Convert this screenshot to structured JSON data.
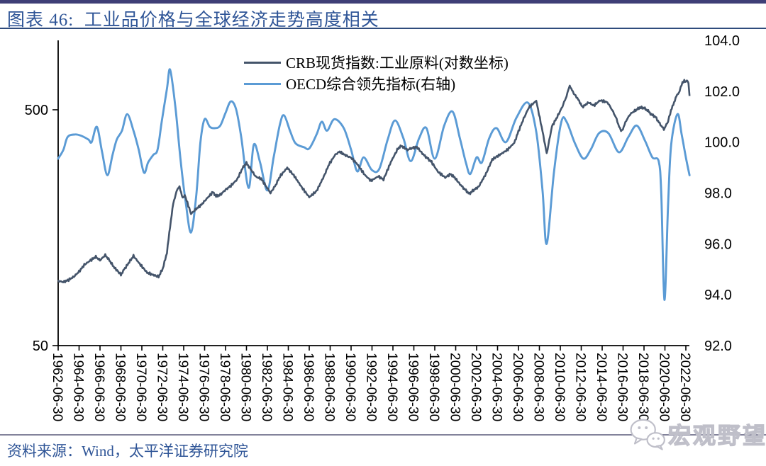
{
  "header": {
    "title": "图表 46:  工业品价格与全球经济走势高度相关",
    "title_color": "#2F5597",
    "top_bar_color": "#3F3F77",
    "underline_color": "#2F4B7C"
  },
  "legend": {
    "items": [
      {
        "label": "CRB现货指数:工业原料(对数坐标)",
        "color": "#44546A"
      },
      {
        "label": "OECD综合领先指标(右轴)",
        "color": "#5B9BD5"
      }
    ]
  },
  "footer": {
    "source_text": "资料来源：Wind，太平洋证券研究院",
    "text_color": "#2F5597",
    "divider_color": "#83839B"
  },
  "watermark": {
    "text": "宏观野望",
    "icon": "wechat-chat-icon",
    "color": "#BFBFC9"
  },
  "chart_data": {
    "type": "line",
    "title": "工业品价格与全球经济走势高度相关",
    "grid": false,
    "legend_position": "top-center",
    "x_axis": {
      "unit": "decimal_year",
      "start_year": 1962.5,
      "end_year": 2022.5,
      "tick_step_years": 2,
      "tick_labels": [
        "1962-06-30",
        "1964-06-30",
        "1966-06-30",
        "1968-06-30",
        "1970-06-30",
        "1972-06-30",
        "1974-06-30",
        "1976-06-30",
        "1978-06-30",
        "1980-06-30",
        "1982-06-30",
        "1984-06-30",
        "1986-06-30",
        "1988-06-30",
        "1990-06-30",
        "1992-06-30",
        "1994-06-30",
        "1996-06-30",
        "1998-06-30",
        "2000-06-30",
        "2002-06-30",
        "2004-06-30",
        "2006-06-30",
        "2008-06-30",
        "2010-06-30",
        "2012-06-30",
        "2014-06-30",
        "2016-06-30",
        "2018-06-30",
        "2020-06-30",
        "2022-06-30"
      ]
    },
    "left_axis": {
      "scale": "log10",
      "tick_values": [
        500,
        50
      ],
      "tick_labels": [
        "500",
        "50"
      ],
      "applies_to": "CRB现货指数:工业原料"
    },
    "right_axis": {
      "scale": "linear",
      "range": [
        92.0,
        104.0
      ],
      "tick_values": [
        104,
        102,
        100,
        98,
        96,
        94,
        92
      ],
      "tick_labels": [
        "104.0",
        "102.0",
        "100.0",
        "98.0",
        "96.0",
        "94.0",
        "92.0"
      ],
      "applies_to": "OECD综合领先指标"
    },
    "series": [
      {
        "name": "CRB现货指数:工业原料(对数坐标)",
        "axis": "left",
        "color": "#44546A",
        "points": [
          [
            1962.5,
            94
          ],
          [
            1963.0,
            93
          ],
          [
            1963.5,
            95
          ],
          [
            1964.0,
            98
          ],
          [
            1964.5,
            103
          ],
          [
            1965.0,
            110
          ],
          [
            1965.6,
            115
          ],
          [
            1966.1,
            119
          ],
          [
            1966.5,
            115
          ],
          [
            1967.0,
            121
          ],
          [
            1967.4,
            115
          ],
          [
            1967.8,
            108
          ],
          [
            1968.5,
            100
          ],
          [
            1968.8,
            105
          ],
          [
            1969.3,
            113
          ],
          [
            1969.7,
            120
          ],
          [
            1970.3,
            111
          ],
          [
            1971.0,
            102
          ],
          [
            1971.5,
            100
          ],
          [
            1972.1,
            98
          ],
          [
            1972.5,
            106
          ],
          [
            1972.9,
            124
          ],
          [
            1973.2,
            160
          ],
          [
            1973.5,
            200
          ],
          [
            1973.8,
            225
          ],
          [
            1974.1,
            237
          ],
          [
            1974.4,
            210
          ],
          [
            1974.6,
            218
          ],
          [
            1975.2,
            181
          ],
          [
            1975.7,
            190
          ],
          [
            1976.2,
            198
          ],
          [
            1976.7,
            210
          ],
          [
            1977.3,
            224
          ],
          [
            1977.6,
            215
          ],
          [
            1978.0,
            218
          ],
          [
            1978.5,
            229
          ],
          [
            1979.0,
            238
          ],
          [
            1979.6,
            253
          ],
          [
            1980.2,
            287
          ],
          [
            1980.5,
            297
          ],
          [
            1980.9,
            280
          ],
          [
            1981.4,
            260
          ],
          [
            1981.9,
            255
          ],
          [
            1982.4,
            236
          ],
          [
            1982.8,
            222
          ],
          [
            1983.3,
            240
          ],
          [
            1983.7,
            261
          ],
          [
            1984.4,
            284
          ],
          [
            1985.1,
            261
          ],
          [
            1985.8,
            234
          ],
          [
            1986.5,
            213
          ],
          [
            1987.2,
            226
          ],
          [
            1987.9,
            261
          ],
          [
            1988.4,
            294
          ],
          [
            1989.0,
            323
          ],
          [
            1989.4,
            332
          ],
          [
            1990.0,
            320
          ],
          [
            1990.5,
            313
          ],
          [
            1991.1,
            294
          ],
          [
            1991.8,
            265
          ],
          [
            1992.4,
            250
          ],
          [
            1993.1,
            261
          ],
          [
            1993.6,
            253
          ],
          [
            1994.3,
            300
          ],
          [
            1995.0,
            344
          ],
          [
            1995.3,
            351
          ],
          [
            1995.9,
            338
          ],
          [
            1996.3,
            344
          ],
          [
            1996.8,
            347
          ],
          [
            1997.4,
            323
          ],
          [
            1998.2,
            300
          ],
          [
            1998.8,
            273
          ],
          [
            1999.5,
            258
          ],
          [
            2000.0,
            267
          ],
          [
            2000.4,
            258
          ],
          [
            2001.0,
            239
          ],
          [
            2001.8,
            220
          ],
          [
            2002.2,
            228
          ],
          [
            2002.7,
            236
          ],
          [
            2003.4,
            268
          ],
          [
            2004.0,
            308
          ],
          [
            2004.7,
            322
          ],
          [
            2005.4,
            337
          ],
          [
            2006.1,
            362
          ],
          [
            2006.5,
            405
          ],
          [
            2007.0,
            459
          ],
          [
            2007.5,
            512
          ],
          [
            2008.2,
            546
          ],
          [
            2008.8,
            405
          ],
          [
            2009.2,
            326
          ],
          [
            2009.7,
            425
          ],
          [
            2010.2,
            466
          ],
          [
            2010.7,
            516
          ],
          [
            2011.1,
            572
          ],
          [
            2011.4,
            635
          ],
          [
            2011.7,
            594
          ],
          [
            2012.3,
            546
          ],
          [
            2012.6,
            513
          ],
          [
            2013.2,
            537
          ],
          [
            2013.7,
            521
          ],
          [
            2014.3,
            548
          ],
          [
            2015.0,
            538
          ],
          [
            2015.4,
            504
          ],
          [
            2015.8,
            466
          ],
          [
            2016.2,
            415
          ],
          [
            2016.4,
            407
          ],
          [
            2016.8,
            450
          ],
          [
            2017.2,
            480
          ],
          [
            2017.7,
            498
          ],
          [
            2018.1,
            511
          ],
          [
            2018.5,
            509
          ],
          [
            2018.9,
            494
          ],
          [
            2019.2,
            478
          ],
          [
            2019.6,
            466
          ],
          [
            2020.0,
            437
          ],
          [
            2020.4,
            413
          ],
          [
            2020.8,
            446
          ],
          [
            2021.0,
            483
          ],
          [
            2021.3,
            528
          ],
          [
            2021.6,
            570
          ],
          [
            2021.9,
            600
          ],
          [
            2022.1,
            640
          ],
          [
            2022.35,
            668
          ],
          [
            2022.5,
            650
          ],
          [
            2022.6,
            670
          ],
          [
            2022.75,
            648
          ],
          [
            2022.85,
            572
          ]
        ]
      },
      {
        "name": "OECD综合领先指标(右轴)",
        "axis": "right",
        "color": "#5B9BD5",
        "points": [
          [
            1962.5,
            99.35
          ],
          [
            1963.0,
            99.7
          ],
          [
            1963.4,
            100.2
          ],
          [
            1964.1,
            100.3
          ],
          [
            1964.7,
            100.25
          ],
          [
            1965.4,
            100.1
          ],
          [
            1965.7,
            100.0
          ],
          [
            1966.2,
            100.6
          ],
          [
            1966.7,
            99.6
          ],
          [
            1967.2,
            98.7
          ],
          [
            1967.7,
            99.5
          ],
          [
            1968.1,
            100.1
          ],
          [
            1968.6,
            100.45
          ],
          [
            1969.1,
            101.1
          ],
          [
            1969.7,
            100.45
          ],
          [
            1970.2,
            99.7
          ],
          [
            1970.7,
            98.8
          ],
          [
            1971.1,
            99.2
          ],
          [
            1971.6,
            99.5
          ],
          [
            1972.0,
            99.7
          ],
          [
            1972.4,
            100.8
          ],
          [
            1972.9,
            102.1
          ],
          [
            1973.2,
            102.85
          ],
          [
            1973.7,
            101.4
          ],
          [
            1974.2,
            99.3
          ],
          [
            1974.7,
            97.6
          ],
          [
            1975.2,
            96.45
          ],
          [
            1975.7,
            97.9
          ],
          [
            1976.1,
            100.0
          ],
          [
            1976.5,
            100.9
          ],
          [
            1977.0,
            100.6
          ],
          [
            1977.5,
            100.55
          ],
          [
            1978.0,
            100.65
          ],
          [
            1978.5,
            101.15
          ],
          [
            1979.0,
            101.6
          ],
          [
            1979.5,
            101.3
          ],
          [
            1980.0,
            100.2
          ],
          [
            1980.7,
            98.2
          ],
          [
            1981.2,
            99.9
          ],
          [
            1981.8,
            99.2
          ],
          [
            1982.5,
            98.1
          ],
          [
            1983.1,
            99.4
          ],
          [
            1983.7,
            100.7
          ],
          [
            1984.1,
            101.05
          ],
          [
            1984.7,
            100.4
          ],
          [
            1985.2,
            99.95
          ],
          [
            1986.0,
            99.8
          ],
          [
            1986.5,
            99.75
          ],
          [
            1987.2,
            100.3
          ],
          [
            1987.7,
            100.8
          ],
          [
            1988.2,
            100.45
          ],
          [
            1988.9,
            100.9
          ],
          [
            1989.8,
            100.55
          ],
          [
            1990.5,
            99.7
          ],
          [
            1991.1,
            98.85
          ],
          [
            1991.7,
            99.4
          ],
          [
            1992.5,
            98.9
          ],
          [
            1993.2,
            98.95
          ],
          [
            1994.0,
            100.1
          ],
          [
            1994.7,
            100.85
          ],
          [
            1995.5,
            100.15
          ],
          [
            1996.2,
            99.25
          ],
          [
            1997.0,
            100.15
          ],
          [
            1997.7,
            100.55
          ],
          [
            1998.5,
            99.35
          ],
          [
            1999.4,
            100.65
          ],
          [
            2000.2,
            101.2
          ],
          [
            2000.9,
            100.15
          ],
          [
            2001.5,
            99.15
          ],
          [
            2001.9,
            98.75
          ],
          [
            2002.5,
            99.4
          ],
          [
            2003.0,
            99.2
          ],
          [
            2003.7,
            100.15
          ],
          [
            2004.4,
            100.55
          ],
          [
            2005.3,
            100.0
          ],
          [
            2006.3,
            100.95
          ],
          [
            2007.4,
            101.55
          ],
          [
            2008.2,
            100.4
          ],
          [
            2008.8,
            98.1
          ],
          [
            2009.2,
            96.0
          ],
          [
            2009.9,
            98.85
          ],
          [
            2010.6,
            100.8
          ],
          [
            2011.1,
            100.8
          ],
          [
            2011.9,
            99.95
          ],
          [
            2012.7,
            99.35
          ],
          [
            2013.4,
            99.7
          ],
          [
            2014.2,
            100.35
          ],
          [
            2015.1,
            100.35
          ],
          [
            2016.1,
            99.6
          ],
          [
            2017.0,
            100.2
          ],
          [
            2017.8,
            100.65
          ],
          [
            2018.6,
            100.05
          ],
          [
            2019.3,
            99.4
          ],
          [
            2019.9,
            99.25
          ],
          [
            2020.15,
            98.0
          ],
          [
            2020.45,
            93.8
          ],
          [
            2020.8,
            97.5
          ],
          [
            2021.1,
            99.9
          ],
          [
            2021.7,
            101.1
          ],
          [
            2022.1,
            100.3
          ],
          [
            2022.5,
            99.4
          ],
          [
            2022.85,
            98.7
          ]
        ]
      }
    ]
  }
}
